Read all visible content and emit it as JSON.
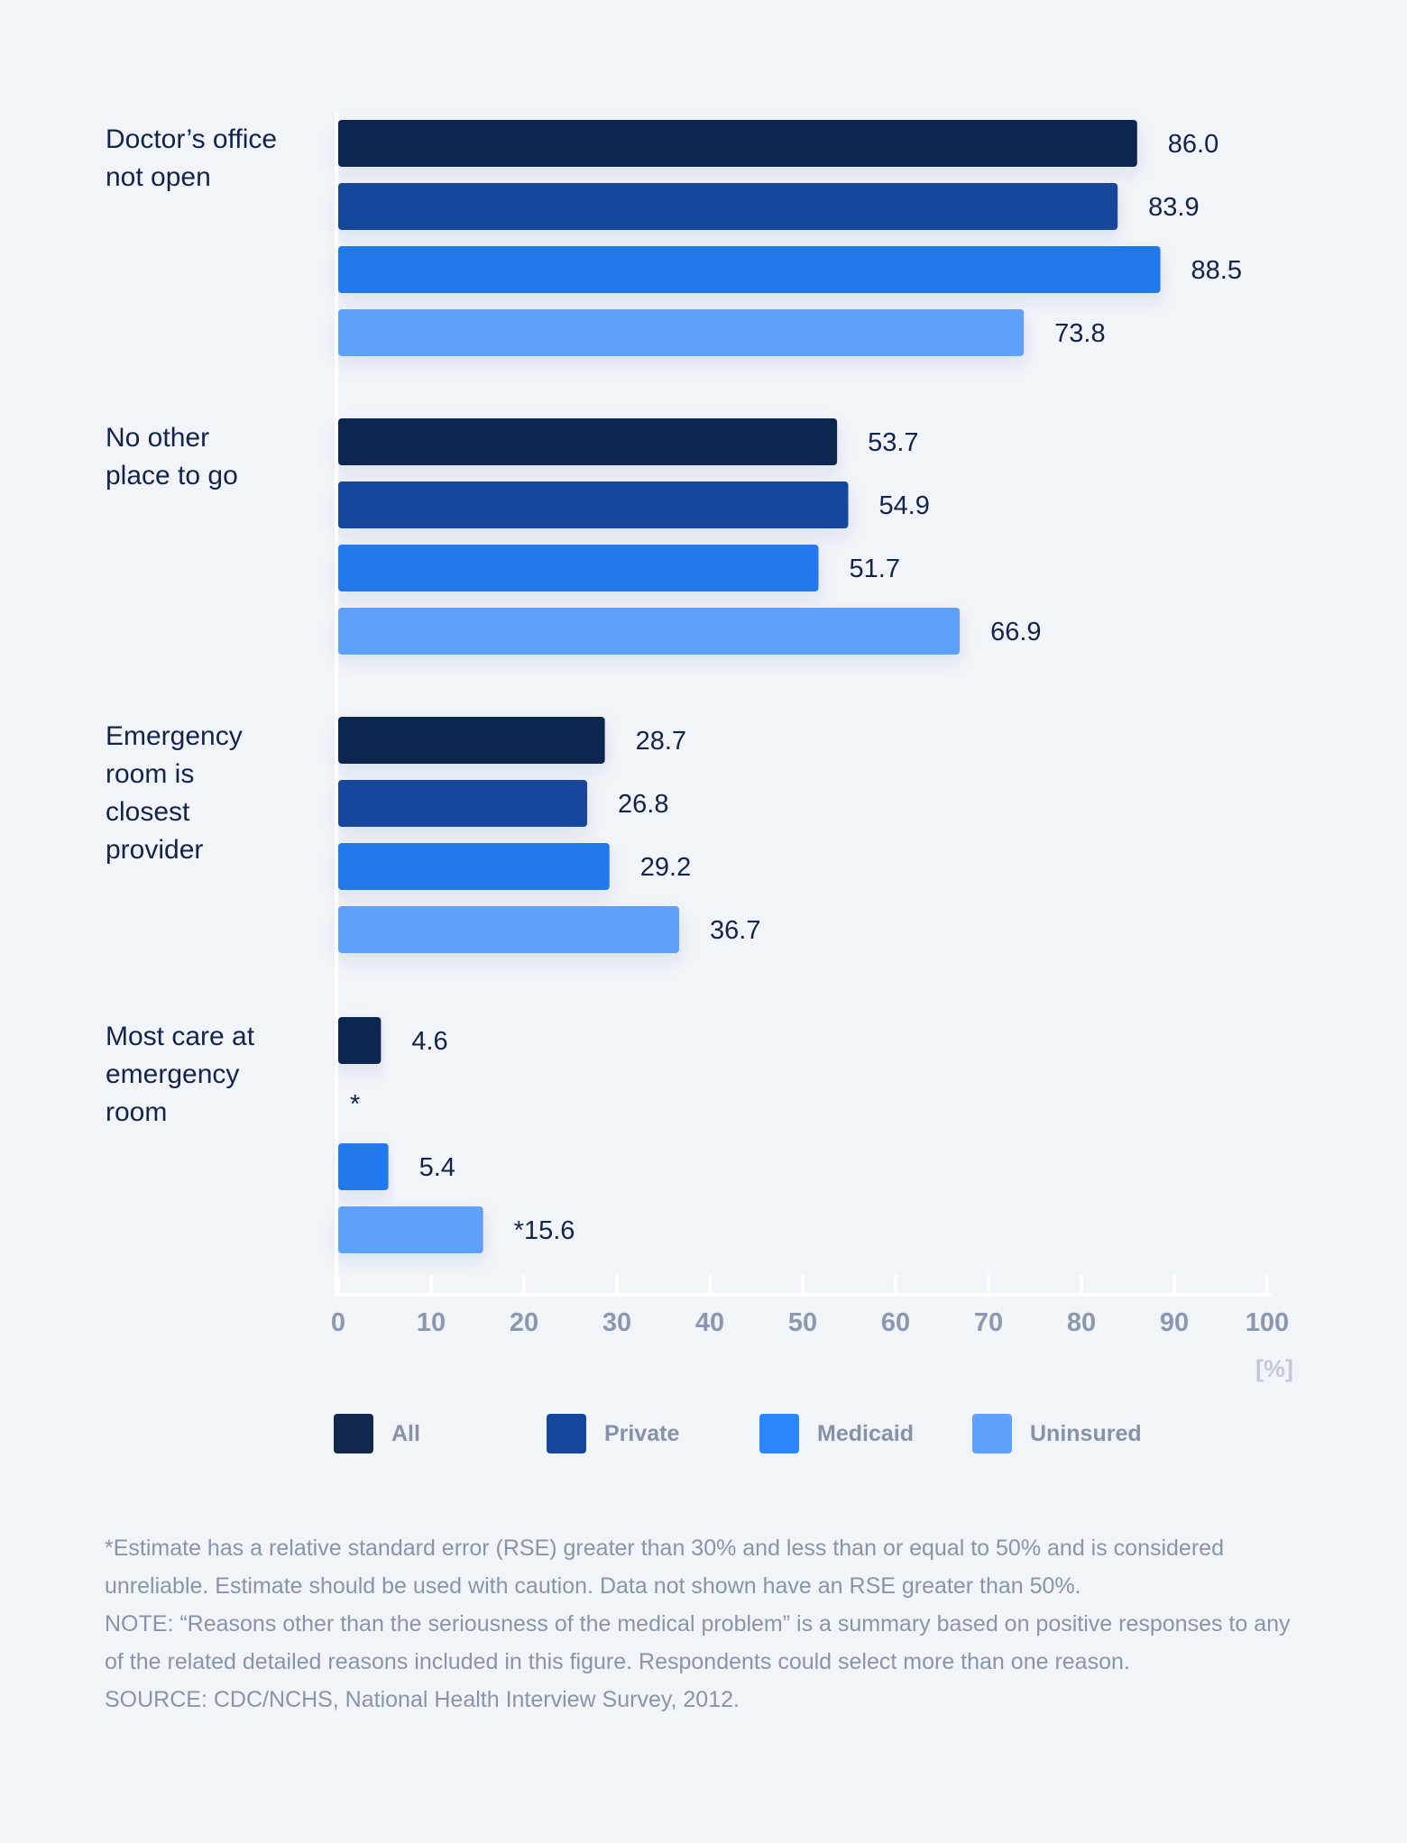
{
  "chart_data": {
    "type": "bar",
    "orientation": "horizontal",
    "categories": [
      [
        "Doctor’s office",
        "not open"
      ],
      [
        "No other",
        "place to go"
      ],
      [
        "Emergency",
        "room is",
        "closest",
        "provider"
      ],
      [
        "Most care at",
        "emergency",
        "room"
      ]
    ],
    "series": [
      {
        "name": "All",
        "color": "#11284f",
        "values": [
          86.0,
          53.7,
          28.7,
          4.6
        ],
        "labels": [
          "86.0",
          "53.7",
          "28.7",
          "4.6"
        ]
      },
      {
        "name": "Private",
        "color": "#17479c",
        "values": [
          83.9,
          54.9,
          26.8,
          null
        ],
        "labels": [
          "83.9",
          "54.9",
          "26.8",
          "*"
        ]
      },
      {
        "name": "Medicaid",
        "color": "#2279eb",
        "values": [
          88.5,
          51.7,
          29.2,
          5.4
        ],
        "labels": [
          "88.5",
          "51.7",
          "29.2",
          "5.4"
        ]
      },
      {
        "name": "Uninsured",
        "color": "#5da1fd",
        "values": [
          73.8,
          66.9,
          36.7,
          15.6
        ],
        "labels": [
          "73.8",
          "66.9",
          "36.7",
          "*15.6"
        ]
      }
    ],
    "xlim": [
      0,
      100
    ],
    "xticks": [
      0,
      10,
      20,
      30,
      40,
      50,
      60,
      70,
      80,
      90,
      100
    ],
    "xunit": "[%]",
    "legend_position": "bottom"
  },
  "legend_items": [
    "All",
    "Private",
    "Medicaid",
    "Uninsured"
  ],
  "notes": [
    "*Estimate has a relative standard error (RSE) greater than 30% and less than or equal to 50% and is considered unreliable. Estimate should be used with caution. Data not shown have an RSE greater than 50%.",
    "NOTE: “Reasons other than the seriousness of the medical problem” is a summary based on positive responses to any of the related detailed reasons included in this figure. Respondents could select more than one reason.",
    "SOURCE: CDC/NCHS, National Health Interview Survey, 2012."
  ]
}
